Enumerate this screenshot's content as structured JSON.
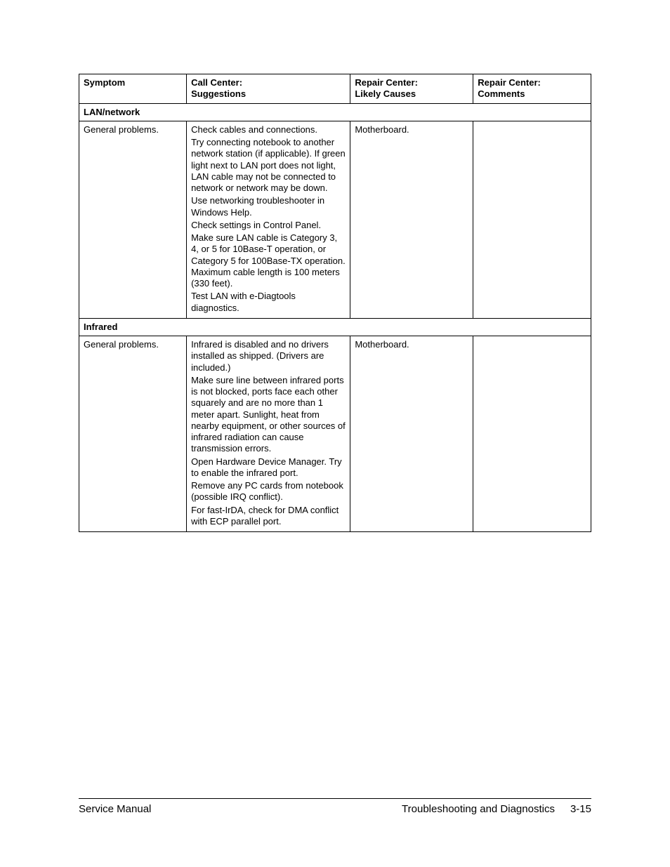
{
  "header": {
    "col1_line1": "",
    "col1_line2": "Symptom",
    "col2_line1": "Call Center:",
    "col2_line2": "Suggestions",
    "col3_line1": "Repair Center:",
    "col3_line2": "Likely Causes",
    "col4_line1": "Repair Center:",
    "col4_line2": "Comments"
  },
  "sections": [
    {
      "title": "LAN/network",
      "rows": [
        {
          "symptom": "General problems.",
          "suggestions": [
            "Check cables and connections.",
            "Try connecting notebook to another network station (if applicable). If green light next to LAN port does not light, LAN cable may not be connected to network or network may be down.",
            "Use networking troubleshooter in Windows Help.",
            "Check settings in Control Panel.",
            "Make sure LAN cable is Category 3, 4, or 5 for 10Base-T operation, or Category 5 for 100Base-TX operation. Maximum cable length is 100 meters (330 feet).",
            "Test LAN with e-Diagtools diagnostics."
          ],
          "causes": "Motherboard.",
          "comments": ""
        }
      ]
    },
    {
      "title": "Infrared",
      "rows": [
        {
          "symptom": "General problems.",
          "suggestions": [
            "Infrared is disabled and no drivers installed as shipped. (Drivers are included.)",
            "Make sure line between infrared ports is not blocked, ports face each other squarely and are no more than 1 meter apart. Sunlight, heat from nearby equipment, or other sources of infrared radiation can cause transmission errors.",
            "Open Hardware Device Manager. Try to enable the infrared port.",
            "Remove any PC cards from notebook (possible IRQ conflict).",
            "For fast-IrDA, check for DMA conflict with ECP parallel port."
          ],
          "causes": "Motherboard.",
          "comments": ""
        }
      ]
    }
  ],
  "footer": {
    "left": "Service Manual",
    "right_title": "Troubleshooting and Diagnostics",
    "page": "3-15"
  }
}
